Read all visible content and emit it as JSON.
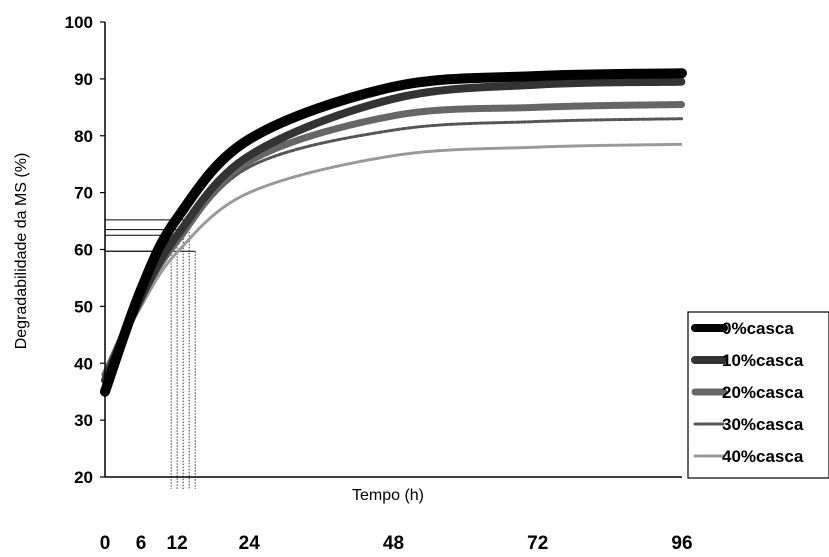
{
  "chart_data": {
    "type": "line",
    "title": "",
    "xlabel": "Tempo (h)",
    "ylabel": "Degradabilidade da MS (%)",
    "xlim": [
      0,
      96
    ],
    "ylim": [
      20,
      100
    ],
    "x_ticks": [
      0,
      6,
      12,
      24,
      48,
      72,
      96
    ],
    "y_ticks": [
      20,
      30,
      40,
      50,
      60,
      70,
      80,
      90,
      100
    ],
    "grid": false,
    "legend_position": "bottom-right",
    "series": [
      {
        "name": "0%casca",
        "color": "#000000",
        "x": [
          0,
          6,
          12,
          24,
          48,
          72,
          96
        ],
        "y": [
          35.0,
          53.0,
          65.5,
          79.4,
          88.6,
          90.5,
          91.0
        ]
      },
      {
        "name": "10%casca",
        "color": "#333333",
        "x": [
          0,
          6,
          12,
          24,
          48,
          72,
          96
        ],
        "y": [
          37.0,
          51.5,
          62.5,
          76.5,
          86.5,
          89.0,
          89.5
        ]
      },
      {
        "name": "20%casca",
        "color": "#666666",
        "x": [
          0,
          6,
          12,
          24,
          48,
          72,
          96
        ],
        "y": [
          38.0,
          51.5,
          61.5,
          75.5,
          83.5,
          85.0,
          85.5
        ]
      },
      {
        "name": "30%casca",
        "color": "#555555",
        "x": [
          0,
          6,
          12,
          24,
          48,
          72,
          96
        ],
        "y": [
          38.0,
          51.0,
          61.0,
          74.5,
          81.0,
          82.5,
          83.0
        ]
      },
      {
        "name": "40%casca",
        "color": "#999999",
        "x": [
          0,
          6,
          12,
          24,
          48,
          72,
          96
        ],
        "y": [
          38.0,
          50.0,
          59.5,
          70.0,
          76.5,
          78.0,
          78.5
        ]
      }
    ],
    "reference_lines": [
      {
        "x": 11,
        "y": 59.7
      },
      {
        "x": 12,
        "y": 62.5
      },
      {
        "x": 13,
        "y": 63.5
      },
      {
        "x": 14,
        "y": 65.2
      },
      {
        "x": 15,
        "y": 59.7
      }
    ]
  }
}
